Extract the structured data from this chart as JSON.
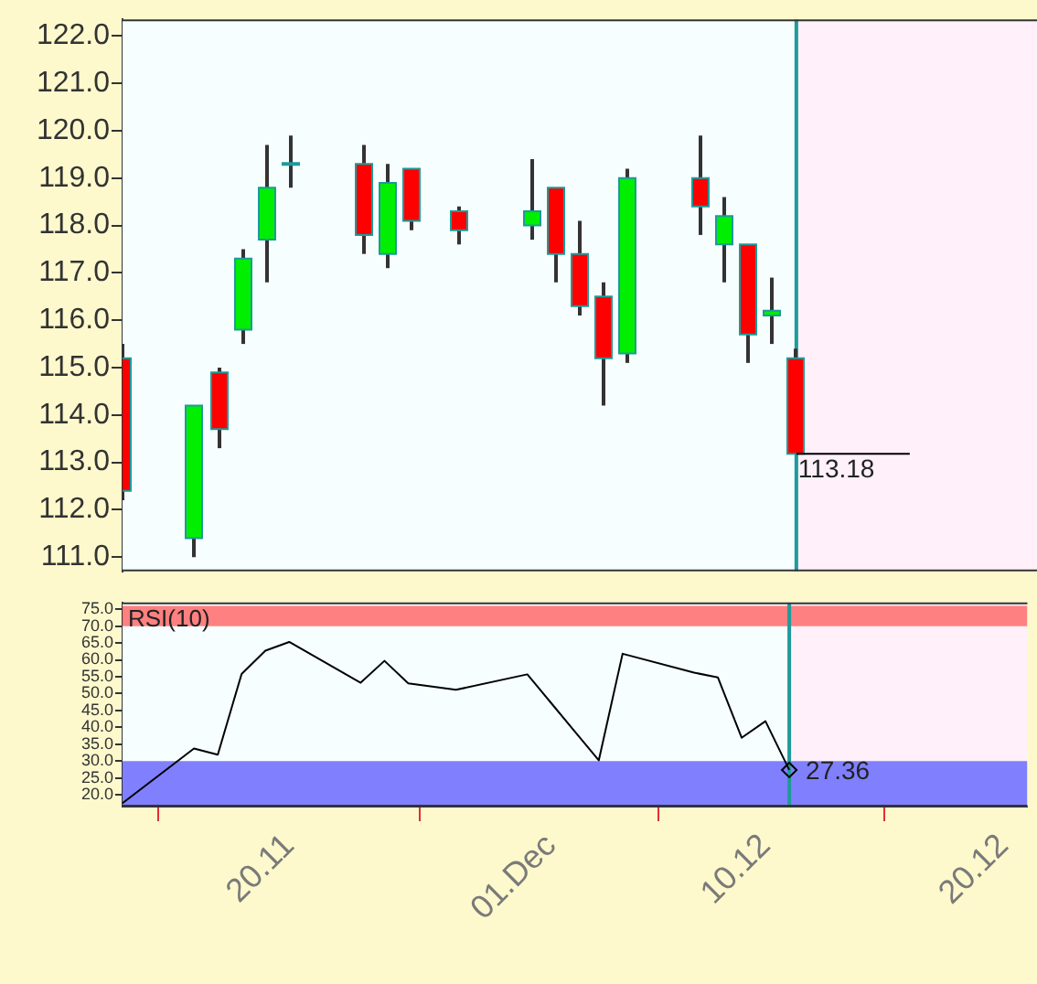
{
  "chart_data": [
    {
      "type": "candlestick",
      "x": [
        "--11-13",
        "--11-16",
        "--11-17",
        "--11-18",
        "--11-19",
        "--11-20",
        "--11-23",
        "--11-24",
        "--11-25",
        "--11-27",
        "--11-30",
        "--12-01",
        "--12-02",
        "--12-03",
        "--12-04",
        "--12-07",
        "--12-08",
        "--12-09",
        "--12-10",
        "--12-11"
      ],
      "ohlc": [
        [
          115.2,
          115.5,
          112.2,
          112.4
        ],
        [
          111.4,
          114.2,
          111.0,
          114.2
        ],
        [
          114.9,
          115.0,
          113.3,
          113.7
        ],
        [
          115.8,
          117.5,
          115.5,
          117.3
        ],
        [
          117.7,
          119.7,
          116.8,
          118.8
        ],
        [
          119.3,
          119.9,
          118.8,
          119.3
        ],
        [
          119.3,
          119.7,
          117.4,
          117.8
        ],
        [
          117.4,
          119.3,
          117.1,
          118.9
        ],
        [
          119.2,
          119.2,
          117.9,
          118.1
        ],
        [
          118.3,
          118.4,
          117.6,
          117.9
        ],
        [
          118.0,
          119.4,
          117.7,
          118.3
        ],
        [
          118.8,
          118.8,
          116.8,
          117.4
        ],
        [
          117.4,
          118.1,
          116.1,
          116.3
        ],
        [
          116.5,
          116.8,
          114.2,
          115.2
        ],
        [
          115.3,
          119.2,
          115.1,
          119.0
        ],
        [
          119.0,
          119.9,
          117.8,
          118.4
        ],
        [
          117.6,
          118.6,
          116.8,
          118.2
        ],
        [
          117.6,
          117.6,
          115.1,
          115.7
        ],
        [
          116.1,
          116.9,
          115.5,
          116.2
        ],
        [
          115.2,
          115.4,
          113.18,
          113.18
        ]
      ],
      "colors": [
        "#ff0000",
        "#00ee00",
        "#ff0000",
        "#00ee00",
        "#00ee00",
        "#1e9a9a",
        "#ff0000",
        "#00ee00",
        "#ff0000",
        "#ff0000",
        "#00ee00",
        "#ff0000",
        "#ff0000",
        "#ff0000",
        "#00ee00",
        "#ff0000",
        "#00ee00",
        "#ff0000",
        "#00ee00",
        "#ff0000"
      ],
      "xlim": [
        "--11-13",
        "--12-21"
      ],
      "ylim": [
        110.7,
        122.35
      ],
      "yticks": [
        {
          "value": 111,
          "label": "111.0"
        },
        {
          "value": 112,
          "label": "112.0"
        },
        {
          "value": 113,
          "label": "113.0"
        },
        {
          "value": 114,
          "label": "114.0"
        },
        {
          "value": 115,
          "label": "115.0"
        },
        {
          "value": 116,
          "label": "116.0"
        },
        {
          "value": 117,
          "label": "117.0"
        },
        {
          "value": 118,
          "label": "118.0"
        },
        {
          "value": 119,
          "label": "119.0"
        },
        {
          "value": 120,
          "label": "120.0"
        },
        {
          "value": 121,
          "label": "121.0"
        },
        {
          "value": 122,
          "label": "122.0"
        }
      ],
      "tick_labels": "y",
      "grid": false,
      "legend": false,
      "ref_lines": [
        {
          "axis": "x",
          "value": "--12-11",
          "color": "#1e9a9a"
        }
      ],
      "bands": [
        {
          "axis": "x",
          "from": "--12-11",
          "to": "--12-21",
          "color": "#fff0fa"
        }
      ],
      "annotations": [
        {
          "text": "113.18",
          "x": "--12-11",
          "y": 113.18
        }
      ]
    },
    {
      "type": "line",
      "title": "RSI(10)",
      "x": [
        "--11-13",
        "--11-16",
        "--11-17",
        "--11-18",
        "--11-19",
        "--11-20",
        "--11-23",
        "--11-24",
        "--11-25",
        "--11-27",
        "--11-30",
        "--12-01",
        "--12-02",
        "--12-03",
        "--12-04",
        "--12-07",
        "--12-08",
        "--12-09",
        "--12-10",
        "--12-11"
      ],
      "series": [
        {
          "color": "#000000",
          "values": [
            17.5,
            33.7,
            31.9,
            55.8,
            62.7,
            65.3,
            53.2,
            59.7,
            53.0,
            51.1,
            55.7,
            47.2,
            38.7,
            30.2,
            61.8,
            56.2,
            54.8,
            36.9,
            41.8,
            27.36
          ]
        }
      ],
      "marker": "none",
      "line_style": "solid",
      "xlim": [
        "--11-13",
        "--12-21"
      ],
      "xticks": [
        {
          "value": "--11-20",
          "label": "20.11"
        },
        {
          "value": "--12-01",
          "label": "01.Dec"
        },
        {
          "value": "--12-10",
          "label": "10.12"
        },
        {
          "value": "--12-20",
          "label": "20.12"
        }
      ],
      "ylim": [
        16.5,
        77
      ],
      "yticks": [
        {
          "value": 20,
          "label": "20.0"
        },
        {
          "value": 25,
          "label": "25.0"
        },
        {
          "value": 30,
          "label": "30.0"
        },
        {
          "value": 35,
          "label": "35.0"
        },
        {
          "value": 40,
          "label": "40.0"
        },
        {
          "value": 45,
          "label": "45.0"
        },
        {
          "value": 50,
          "label": "50.0"
        },
        {
          "value": 55,
          "label": "55.0"
        },
        {
          "value": 60,
          "label": "60.0"
        },
        {
          "value": 65,
          "label": "65.0"
        },
        {
          "value": 70,
          "label": "70.0"
        },
        {
          "value": 75,
          "label": "75.0"
        }
      ],
      "grid": false,
      "legend": false,
      "ref_lines": [
        {
          "axis": "x",
          "value": "--12-11",
          "color": "#1e9a9a"
        }
      ],
      "bands": [
        {
          "axis": "x",
          "from": "--12-11",
          "to": "--12-21",
          "color": "#fff0fa"
        },
        {
          "axis": "y",
          "from": 70,
          "to": 76,
          "color": "#ff8080"
        },
        {
          "axis": "y",
          "from": 16.5,
          "to": 30,
          "color": "#8080ff"
        }
      ],
      "annotations": [
        {
          "text": "27.36",
          "x": "--12-11",
          "y": 27.36
        }
      ]
    }
  ]
}
